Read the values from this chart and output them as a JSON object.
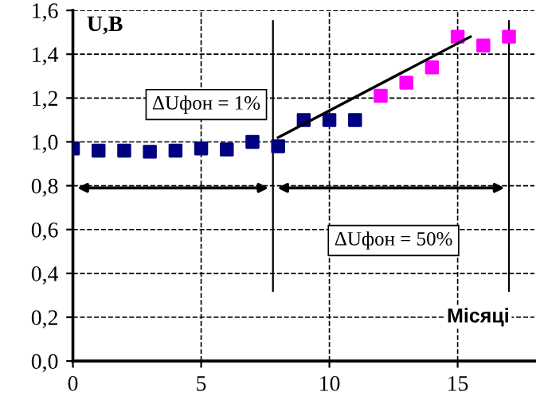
{
  "chart_data": {
    "type": "scatter",
    "ylabel": "U,B",
    "xlabel": "Місяці",
    "series": [
      {
        "color": "#000080",
        "x": [
          0,
          1,
          2,
          3,
          4,
          5,
          6,
          7,
          8,
          9,
          10,
          11
        ],
        "values": [
          0.97,
          0.96,
          0.96,
          0.955,
          0.96,
          0.97,
          0.965,
          1.0,
          0.98,
          1.1,
          1.1,
          1.1
        ]
      },
      {
        "color": "#ff00ff",
        "x": [
          12,
          13,
          14,
          15,
          16,
          17
        ],
        "values": [
          1.21,
          1.27,
          1.34,
          1.48,
          1.44,
          1.48
        ]
      },
      {
        "type": "line",
        "marker": "none",
        "color": "#000000",
        "x": [
          8,
          15.5
        ],
        "values": [
          1.02,
          1.48
        ]
      }
    ],
    "marker": "square",
    "ref_lines": [
      {
        "axis": "x",
        "value": 7.8,
        "color": "#000000"
      },
      {
        "axis": "x",
        "value": 17,
        "color": "#000000"
      }
    ],
    "annotations": [
      "ΔUфон = 1%",
      "ΔUфон = 50%"
    ],
    "xlim": [
      0,
      18
    ],
    "ylim": [
      0,
      1.6
    ],
    "xticks": [
      0,
      5,
      10,
      15
    ],
    "yticks": [
      {
        "value": 0,
        "label": "0,0"
      },
      {
        "value": 0.2,
        "label": "0,2"
      },
      {
        "value": 0.4,
        "label": "0,4"
      },
      {
        "value": 0.6,
        "label": "0,6"
      },
      {
        "value": 0.8,
        "label": "0,8"
      },
      {
        "value": 1.0,
        "label": "1,0"
      },
      {
        "value": 1.2,
        "label": "1,2"
      },
      {
        "value": 1.4,
        "label": "1,4"
      },
      {
        "value": 1.6,
        "label": "1,6"
      }
    ],
    "grid": true,
    "legend": false
  }
}
